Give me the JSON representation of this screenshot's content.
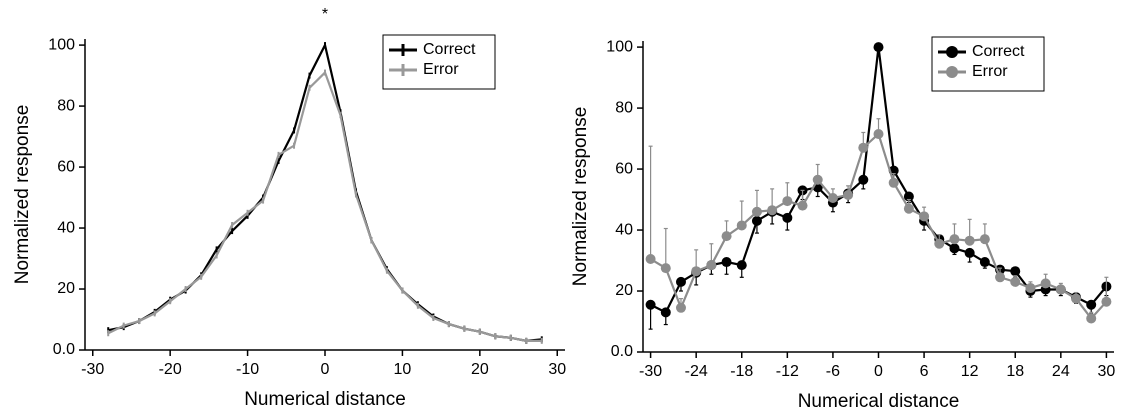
{
  "chart_data": [
    {
      "type": "line",
      "annotation": "*",
      "xlabel": "Numerical distance",
      "ylabel": "Normalized response",
      "x": [
        -28,
        -26,
        -24,
        -22,
        -20,
        -18,
        -16,
        -14,
        -12,
        -10,
        -8,
        -6,
        -4,
        -2,
        0,
        2,
        4,
        6,
        8,
        10,
        12,
        14,
        16,
        18,
        20,
        22,
        24,
        26,
        28
      ],
      "series": [
        {
          "name": "Correct",
          "color": "#000000",
          "marker": "tick",
          "values": [
            6.5,
            7.5,
            9.5,
            12.5,
            16.5,
            19.5,
            24.5,
            33,
            39,
            44,
            50,
            62,
            72,
            90,
            100,
            78,
            52,
            36,
            26.5,
            19.5,
            15,
            11,
            8.5,
            7,
            6,
            4.5,
            4,
            3,
            3.5
          ]
        },
        {
          "name": "Error",
          "color": "#999999",
          "marker": "tick",
          "values": [
            5.5,
            8,
            9.5,
            12,
            16,
            20,
            24,
            31,
            41,
            45,
            49,
            64,
            67,
            86,
            91,
            77,
            51,
            36,
            26,
            19.5,
            14.5,
            10.5,
            8.5,
            7,
            6,
            4.5,
            4,
            3,
            3
          ]
        }
      ],
      "xlim": [
        -31,
        31
      ],
      "xticks": [
        -30,
        -20,
        -10,
        0,
        10,
        20,
        30
      ],
      "ylim": [
        0,
        102
      ],
      "yticks": [
        {
          "value": 0,
          "label": "0.0"
        },
        20,
        40,
        60,
        80,
        100
      ],
      "legend": "upper right"
    },
    {
      "type": "line",
      "xlabel": "Numerical distance",
      "ylabel": "Normalized response",
      "x": [
        -30,
        -28,
        -26,
        -24,
        -22,
        -20,
        -18,
        -16,
        -14,
        -12,
        -10,
        -8,
        -6,
        -4,
        -2,
        0,
        2,
        4,
        6,
        8,
        10,
        12,
        14,
        16,
        18,
        20,
        22,
        24,
        26,
        28,
        30
      ],
      "series": [
        {
          "name": "Correct",
          "color": "#000000",
          "marker": "circle",
          "error_direction": "down",
          "values": [
            15.5,
            13,
            23,
            26,
            28.5,
            29.5,
            28.5,
            43,
            46,
            44,
            53,
            54,
            49,
            52,
            56.5,
            100,
            59.5,
            51,
            43,
            37,
            34,
            32.5,
            29.5,
            27,
            26.5,
            20,
            20.5,
            20.5,
            18,
            15.5,
            21.5
          ],
          "errors": [
            8,
            4,
            3,
            4,
            3,
            4,
            4,
            4,
            4,
            4,
            3,
            3,
            3,
            3,
            3,
            0,
            3,
            2,
            3,
            2,
            2,
            3,
            2,
            2,
            2,
            2,
            2,
            2,
            2,
            3,
            3
          ]
        },
        {
          "name": "Error",
          "color": "#8c8c8c",
          "marker": "circle",
          "error_direction": "up",
          "values": [
            30.5,
            27.5,
            14.5,
            26.5,
            28.5,
            38,
            41.5,
            46,
            46.5,
            49.5,
            48,
            56.5,
            50.5,
            51.5,
            67,
            71.5,
            55.5,
            47,
            44.5,
            35.5,
            37,
            36.5,
            37,
            24.5,
            23,
            21,
            22.5,
            20.5,
            17.5,
            11,
            16.5
          ],
          "errors": [
            37,
            13,
            3,
            7,
            7,
            5,
            8,
            7,
            7,
            6,
            5,
            5,
            3,
            3,
            5,
            5,
            3,
            3,
            3,
            3,
            5,
            7,
            5,
            3,
            2,
            2,
            3,
            2,
            2,
            2,
            8
          ]
        }
      ],
      "xlim": [
        -31,
        31
      ],
      "xticks": [
        -30,
        -24,
        -18,
        -12,
        -6,
        0,
        6,
        12,
        18,
        24,
        30
      ],
      "ylim": [
        0,
        102
      ],
      "yticks": [
        {
          "value": 0,
          "label": "0.0"
        },
        20,
        40,
        60,
        80,
        100
      ],
      "legend": "upper right"
    }
  ]
}
